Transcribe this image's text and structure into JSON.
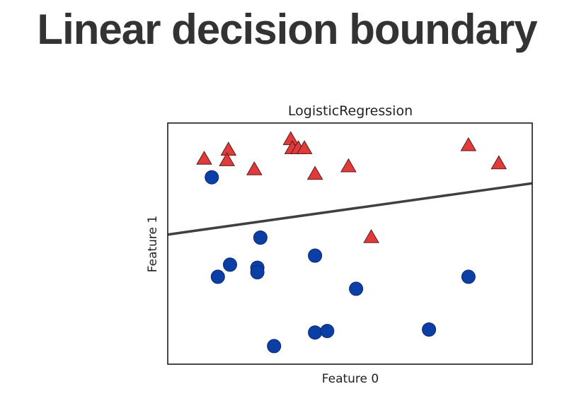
{
  "slide": {
    "title": "Linear decision boundary"
  },
  "chart_data": {
    "type": "scatter",
    "title": "LogisticRegression",
    "xlabel": "Feature 0",
    "ylabel": "Feature 1",
    "xlim": [
      0,
      12
    ],
    "ylim": [
      0,
      8
    ],
    "grid": false,
    "ticks": false,
    "series": [
      {
        "marker": "triangle",
        "color": "#e03b3b",
        "points": [
          [
            1.2,
            6.8
          ],
          [
            2.0,
            7.1
          ],
          [
            1.95,
            6.75
          ],
          [
            2.85,
            6.45
          ],
          [
            4.05,
            7.45
          ],
          [
            4.1,
            7.15
          ],
          [
            4.3,
            7.15
          ],
          [
            4.5,
            7.15
          ],
          [
            4.85,
            6.3
          ],
          [
            5.95,
            6.55
          ],
          [
            6.7,
            4.2
          ],
          [
            9.9,
            7.25
          ],
          [
            10.9,
            6.65
          ]
        ]
      },
      {
        "marker": "circle",
        "color": "#0b3fa5",
        "points": [
          [
            1.45,
            6.2
          ],
          [
            3.05,
            4.2
          ],
          [
            2.05,
            3.3
          ],
          [
            1.65,
            2.9
          ],
          [
            2.95,
            3.2
          ],
          [
            2.95,
            3.05
          ],
          [
            4.85,
            3.6
          ],
          [
            6.2,
            2.5
          ],
          [
            9.9,
            2.9
          ],
          [
            4.85,
            1.05
          ],
          [
            5.25,
            1.1
          ],
          [
            8.6,
            1.15
          ],
          [
            3.5,
            0.6
          ]
        ]
      }
    ],
    "boundary": {
      "color": "#404040",
      "points": [
        [
          0,
          4.3
        ],
        [
          12,
          6.0
        ]
      ]
    }
  }
}
